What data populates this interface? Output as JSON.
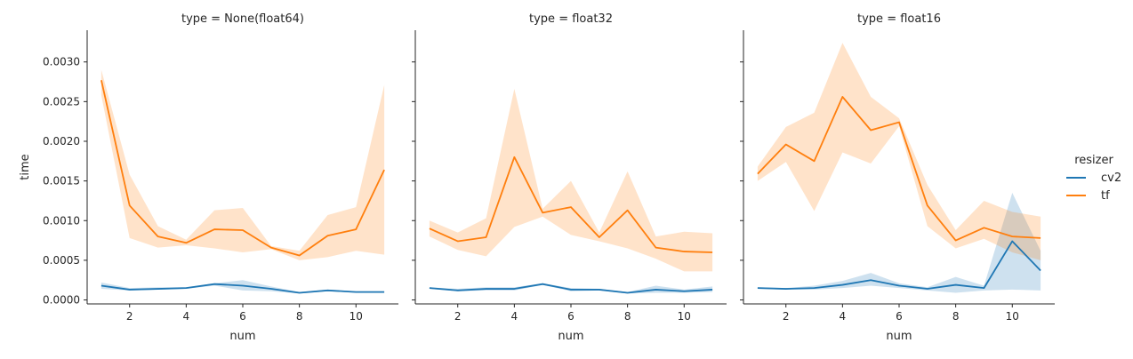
{
  "chart_data": {
    "type": "line",
    "ylabel": "time",
    "xlabel": "num",
    "xlim": [
      0.5,
      11.5
    ],
    "ylim": [
      -5e-05,
      0.0034
    ],
    "xticks": [
      2,
      4,
      6,
      8,
      10
    ],
    "xtick_labels": [
      "2",
      "4",
      "6",
      "8",
      "10"
    ],
    "yticks": [
      0,
      0.0005,
      0.001,
      0.0015,
      0.002,
      0.0025,
      0.003
    ],
    "ytick_labels": [
      "0.0000",
      "0.0005",
      "0.0010",
      "0.0015",
      "0.0020",
      "0.0025",
      "0.0030"
    ],
    "grid": false,
    "legend": {
      "title": "resizer",
      "placement": "right",
      "entries": [
        {
          "name": "cv2",
          "color": "#1f77b4"
        },
        {
          "name": "tf",
          "color": "#ff7f0e"
        }
      ]
    },
    "x": [
      1,
      2,
      3,
      4,
      5,
      6,
      7,
      8,
      9,
      10,
      11
    ],
    "panels": [
      {
        "title": "type = None(float64)",
        "series": [
          {
            "name": "cv2",
            "color": "#1f77b4",
            "values": [
              0.00018,
              0.00013,
              0.00014,
              0.00015,
              0.0002,
              0.00018,
              0.00014,
              9e-05,
              0.00012,
              0.0001,
              0.0001
            ],
            "ci_low": [
              0.00014,
              0.00012,
              0.00013,
              0.00014,
              0.00018,
              0.00012,
              0.00011,
              8e-05,
              0.00011,
              9e-05,
              9e-05
            ],
            "ci_high": [
              0.00022,
              0.00015,
              0.00016,
              0.00016,
              0.00021,
              0.00025,
              0.00017,
              0.0001,
              0.00013,
              0.00011,
              0.00011
            ]
          },
          {
            "name": "tf",
            "color": "#ff7f0e",
            "values": [
              0.00277,
              0.00119,
              0.0008,
              0.00072,
              0.00089,
              0.00088,
              0.00066,
              0.00056,
              0.00081,
              0.00089,
              0.00164
            ],
            "ci_low": [
              0.00258,
              0.00078,
              0.00066,
              0.00069,
              0.00065,
              0.0006,
              0.00064,
              0.0005,
              0.00054,
              0.00062,
              0.00057
            ],
            "ci_high": [
              0.0029,
              0.00158,
              0.00093,
              0.00076,
              0.00113,
              0.00116,
              0.00068,
              0.00062,
              0.00107,
              0.00117,
              0.00271
            ]
          }
        ]
      },
      {
        "title": "type = float32",
        "series": [
          {
            "name": "cv2",
            "color": "#1f77b4",
            "values": [
              0.00015,
              0.00012,
              0.00014,
              0.00014,
              0.0002,
              0.00013,
              0.00013,
              9e-05,
              0.00013,
              0.00011,
              0.00013
            ],
            "ci_low": [
              0.00014,
              0.00011,
              0.00012,
              0.00012,
              0.00019,
              0.00011,
              0.00012,
              8e-05,
              9e-05,
              9e-05,
              0.0001
            ],
            "ci_high": [
              0.00016,
              0.00014,
              0.00016,
              0.00016,
              0.00021,
              0.00015,
              0.00014,
              0.0001,
              0.00018,
              0.00013,
              0.00017
            ]
          },
          {
            "name": "tf",
            "color": "#ff7f0e",
            "values": [
              0.0009,
              0.00074,
              0.00079,
              0.0018,
              0.0011,
              0.00117,
              0.00079,
              0.00113,
              0.00066,
              0.00061,
              0.0006
            ],
            "ci_low": [
              0.0008,
              0.00063,
              0.00055,
              0.00092,
              0.00105,
              0.00082,
              0.00074,
              0.00065,
              0.00052,
              0.00036,
              0.00036
            ],
            "ci_high": [
              0.001,
              0.00085,
              0.00103,
              0.00266,
              0.00115,
              0.0015,
              0.00085,
              0.00162,
              0.0008,
              0.00086,
              0.00084
            ]
          }
        ]
      },
      {
        "title": "type = float16",
        "series": [
          {
            "name": "cv2",
            "color": "#1f77b4",
            "values": [
              0.00015,
              0.00014,
              0.00015,
              0.00019,
              0.00025,
              0.00018,
              0.00014,
              0.00019,
              0.00015,
              0.00074,
              0.00037
            ],
            "ci_low": [
              0.00014,
              0.00013,
              0.00013,
              0.00015,
              0.00018,
              0.00015,
              0.00012,
              9e-05,
              0.00012,
              0.00013,
              0.00012
            ],
            "ci_high": [
              0.00016,
              0.00015,
              0.00018,
              0.00024,
              0.00034,
              0.00021,
              0.00016,
              0.00029,
              0.00018,
              0.00135,
              0.00062
            ]
          },
          {
            "name": "tf",
            "color": "#ff7f0e",
            "values": [
              0.00159,
              0.00196,
              0.00175,
              0.00256,
              0.00214,
              0.00224,
              0.00119,
              0.00075,
              0.00091,
              0.0008,
              0.00078
            ],
            "ci_low": [
              0.0015,
              0.00174,
              0.00112,
              0.00186,
              0.00172,
              0.00219,
              0.00093,
              0.00065,
              0.00077,
              0.0006,
              0.0005
            ],
            "ci_high": [
              0.00168,
              0.00218,
              0.00236,
              0.00324,
              0.00256,
              0.00229,
              0.00145,
              0.00088,
              0.00125,
              0.00111,
              0.00105
            ]
          }
        ]
      }
    ]
  }
}
